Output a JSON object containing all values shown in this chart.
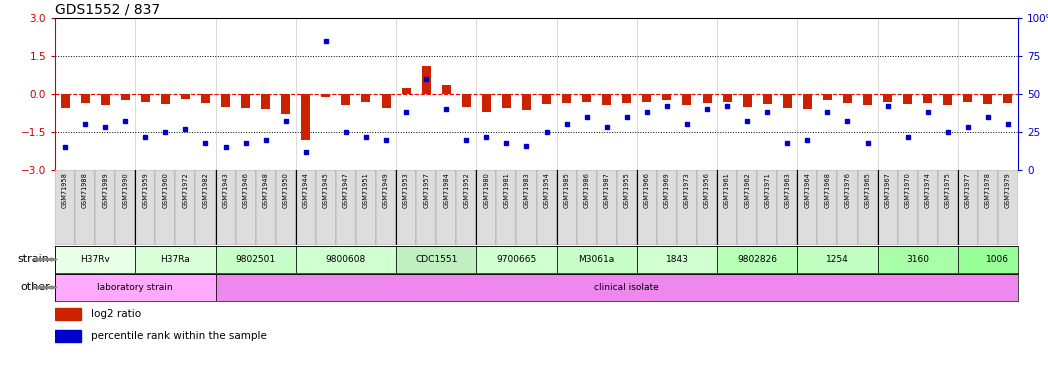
{
  "title": "GDS1552 / 837",
  "sample_labels": [
    "GSM71958",
    "GSM71988",
    "GSM71989",
    "GSM71990",
    "GSM71959",
    "GSM71960",
    "GSM71972",
    "GSM71982",
    "GSM71943",
    "GSM71946",
    "GSM71948",
    "GSM71950",
    "GSM71944",
    "GSM71945",
    "GSM71947",
    "GSM71951",
    "GSM71949",
    "GSM71953",
    "GSM71957",
    "GSM71984",
    "GSM71952",
    "GSM71980",
    "GSM71981",
    "GSM71983",
    "GSM71954",
    "GSM71985",
    "GSM71986",
    "GSM71987",
    "GSM71955",
    "GSM71966",
    "GSM71969",
    "GSM71973",
    "GSM71956",
    "GSM71961",
    "GSM71962",
    "GSM71971",
    "GSM71963",
    "GSM71964",
    "GSM71968",
    "GSM71976",
    "GSM71965",
    "GSM71967",
    "GSM71970",
    "GSM71974",
    "GSM71975",
    "GSM71977",
    "GSM71978",
    "GSM71979"
  ],
  "log2_ratio": [
    -0.55,
    -0.35,
    -0.45,
    -0.25,
    -0.3,
    -0.4,
    -0.2,
    -0.35,
    -0.5,
    -0.55,
    -0.6,
    -0.8,
    -1.8,
    -0.1,
    -0.45,
    -0.3,
    -0.55,
    0.25,
    1.1,
    0.35,
    -0.5,
    -0.7,
    -0.55,
    -0.65,
    -0.4,
    -0.35,
    -0.3,
    -0.45,
    -0.35,
    -0.3,
    -0.25,
    -0.45,
    -0.35,
    -0.3,
    -0.5,
    -0.4,
    -0.55,
    -0.6,
    -0.25,
    -0.35,
    -0.45,
    -0.3,
    -0.4,
    -0.35,
    -0.45,
    -0.3,
    -0.4,
    -0.35
  ],
  "percentile_rank": [
    15,
    30,
    28,
    32,
    22,
    25,
    27,
    18,
    15,
    18,
    20,
    32,
    12,
    85,
    25,
    22,
    20,
    38,
    60,
    40,
    20,
    22,
    18,
    16,
    25,
    30,
    35,
    28,
    35,
    38,
    42,
    30,
    40,
    42,
    32,
    38,
    18,
    20,
    38,
    32,
    18,
    42,
    22,
    38,
    25,
    28,
    35,
    30
  ],
  "strain_groups": [
    {
      "label": "H37Rv",
      "start": 0,
      "end": 3,
      "color": "#e8ffe8"
    },
    {
      "label": "H37Ra",
      "start": 4,
      "end": 7,
      "color": "#d8ffd8"
    },
    {
      "label": "9802501",
      "start": 8,
      "end": 11,
      "color": "#c8ffc8"
    },
    {
      "label": "9800608",
      "start": 12,
      "end": 16,
      "color": "#d0ffd0"
    },
    {
      "label": "CDC1551",
      "start": 17,
      "end": 20,
      "color": "#c0f0c0"
    },
    {
      "label": "9700665",
      "start": 21,
      "end": 24,
      "color": "#d0ffd0"
    },
    {
      "label": "M3061a",
      "start": 25,
      "end": 28,
      "color": "#c8ffc8"
    },
    {
      "label": "1843",
      "start": 29,
      "end": 32,
      "color": "#d0ffd0"
    },
    {
      "label": "9802826",
      "start": 33,
      "end": 36,
      "color": "#b8ffb8"
    },
    {
      "label": "1254",
      "start": 37,
      "end": 40,
      "color": "#c0ffc0"
    },
    {
      "label": "3160",
      "start": 41,
      "end": 44,
      "color": "#a8ffa8"
    },
    {
      "label": "1006",
      "start": 45,
      "end": 48,
      "color": "#98ff98"
    }
  ],
  "other_groups": [
    {
      "label": "laboratory strain",
      "start": 0,
      "end": 7,
      "color": "#ffaaff"
    },
    {
      "label": "clinical isolate",
      "start": 8,
      "end": 48,
      "color": "#ee88ee"
    }
  ],
  "ylim_log2": [
    -3.0,
    3.0
  ],
  "yticks_left": [
    -3,
    -1.5,
    0,
    1.5,
    3
  ],
  "yticks_right": [
    0,
    25,
    50,
    75,
    100
  ],
  "bar_color": "#cc2200",
  "dot_color": "#0000cc",
  "left_tick_color": "#cc0000",
  "right_tick_color": "#0000cc",
  "bg_color": "#ffffff",
  "label_bg_color": "#cccccc",
  "label_edge_color": "#999999"
}
